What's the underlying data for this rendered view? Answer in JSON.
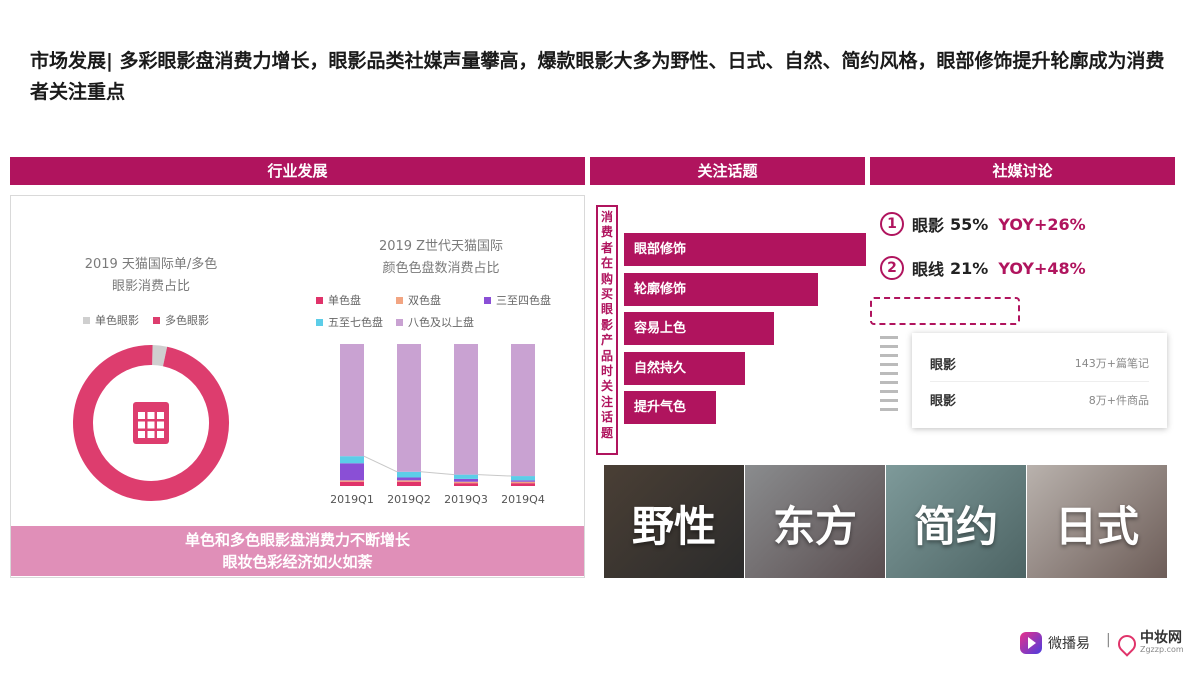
{
  "page": {
    "title": "市场发展| 多彩眼影盘消费力增长，眼影品类社媒声量攀高，爆款眼影大多为野性、日式、自然、简约风格，眼部修饰提升轮廓成为消费者关注重点"
  },
  "headers": {
    "industry": "行业发展",
    "topics": "关注话题",
    "social": "社媒讨论"
  },
  "chart_data": [
    {
      "type": "pie",
      "title": "2019 天猫国际单/多色眼影消费占比",
      "title_lines": [
        "2019 天猫国际单/多色",
        "眼影消费占比"
      ],
      "legend": [
        "单色眼影",
        "多色眼影"
      ],
      "slices": [
        {
          "name": "单色眼影",
          "value": 3,
          "color": "#cfcfcf"
        },
        {
          "name": "多色眼影",
          "value": 97,
          "color": "#dd3d6e"
        }
      ]
    },
    {
      "type": "bar",
      "stacked": true,
      "title": "2019 Z世代天猫国际颜色色盘数消费占比",
      "title_lines": [
        "2019 Z世代天猫国际",
        "颜色色盘数消费占比"
      ],
      "categories": [
        "2019Q1",
        "2019Q2",
        "2019Q3",
        "2019Q4"
      ],
      "ylim": [
        0,
        100
      ],
      "series": [
        {
          "name": "单色盘",
          "color": "#e0336a",
          "values": [
            3,
            3,
            2,
            2
          ]
        },
        {
          "name": "双色盘",
          "color": "#f2a582",
          "values": [
            1,
            1,
            1,
            1
          ]
        },
        {
          "name": "三至四色盘",
          "color": "#8a4fd6",
          "values": [
            12,
            2,
            2,
            1
          ]
        },
        {
          "name": "五至七色盘",
          "color": "#5ccde8",
          "values": [
            5,
            4,
            3,
            3
          ]
        },
        {
          "name": "八色及以上盘",
          "color": "#c9a2d2",
          "values": [
            79,
            90,
            92,
            93
          ]
        }
      ]
    },
    {
      "type": "bar",
      "orientation": "horizontal",
      "categories": [
        "眼部修饰",
        "轮廓修饰",
        "容易上色",
        "自然持久",
        "提升气色"
      ],
      "values": [
        100,
        80,
        62,
        50,
        38
      ],
      "color": "#b0145e"
    }
  ],
  "left_panel": {
    "footer_line1": "单色和多色眼影盘消费力不断增长",
    "footer_line2": "眼妆色彩经济如火如荼"
  },
  "topics": {
    "vertical_label": "消费者在购买眼影产品时关注话题"
  },
  "styles": [
    {
      "label": "野性",
      "bg": "#4a3f35"
    },
    {
      "label": "东方",
      "bg": "#8a8c8e"
    },
    {
      "label": "简约",
      "bg": "#7e9a9a"
    },
    {
      "label": "日式",
      "bg": "#b9b2ad"
    }
  ],
  "social": {
    "stats": [
      {
        "num": "①",
        "name": "眼影",
        "share": "55%",
        "yoy": "YOY+26%"
      },
      {
        "num": "②",
        "name": "眼线",
        "share": "21%",
        "yoy": "YOY+48%"
      }
    ],
    "popup": [
      {
        "k": "眼影",
        "v": "143万+篇笔记"
      },
      {
        "k": "眼影",
        "v": "8万+件商品"
      }
    ]
  },
  "footer": {
    "logo1": "微播易",
    "separator": "|",
    "logo2": "中妆网",
    "logo2_sub": "Zgzzp.com"
  }
}
